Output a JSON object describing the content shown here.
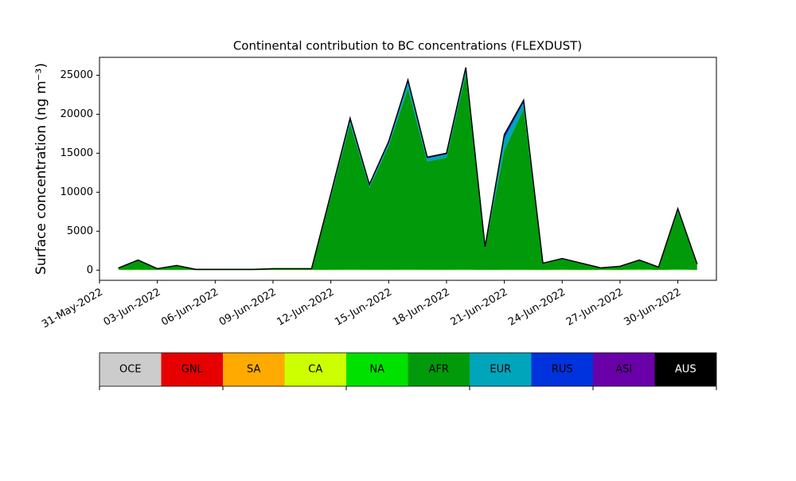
{
  "chart_data": {
    "type": "stacked_area",
    "title": "Continental contribution to BC concentrations (FLEXDUST)",
    "y_label": "Surface concentration (ng m⁻³)",
    "x": [
      "2022-06-01",
      "2022-06-02",
      "2022-06-03",
      "2022-06-04",
      "2022-06-05",
      "2022-06-06",
      "2022-06-07",
      "2022-06-08",
      "2022-06-09",
      "2022-06-10",
      "2022-06-11",
      "2022-06-12",
      "2022-06-13",
      "2022-06-14",
      "2022-06-15",
      "2022-06-16",
      "2022-06-17",
      "2022-06-18",
      "2022-06-19",
      "2022-06-20",
      "2022-06-21",
      "2022-06-22",
      "2022-06-23",
      "2022-06-24",
      "2022-06-25",
      "2022-06-26",
      "2022-06-27",
      "2022-06-28",
      "2022-06-29",
      "2022-06-30",
      "2022-07-01"
    ],
    "series": [
      {
        "name": "OCE",
        "color": "#cccccc",
        "values": [
          1,
          1,
          1,
          1,
          1,
          1,
          1,
          1,
          1,
          1,
          1,
          1,
          1,
          1,
          1,
          1,
          1,
          1,
          1,
          1,
          1,
          1,
          1,
          1,
          1,
          1,
          1,
          1,
          1,
          1,
          1
        ]
      },
      {
        "name": "GNL",
        "color": "#e60000",
        "values": [
          2,
          2,
          2,
          2,
          2,
          2,
          2,
          2,
          2,
          2,
          2,
          2,
          2,
          2,
          2,
          2,
          2,
          2,
          2,
          2,
          2,
          2,
          2,
          2,
          2,
          2,
          2,
          2,
          2,
          2,
          2
        ]
      },
      {
        "name": "SA",
        "color": "#ffaa00",
        "values": [
          5,
          5,
          5,
          5,
          5,
          5,
          5,
          5,
          5,
          5,
          5,
          5,
          5,
          5,
          5,
          5,
          5,
          5,
          5,
          5,
          5,
          5,
          5,
          5,
          5,
          5,
          5,
          5,
          5,
          5,
          5
        ]
      },
      {
        "name": "CA",
        "color": "#ccff00",
        "values": [
          20,
          30,
          10,
          20,
          10,
          10,
          10,
          10,
          20,
          20,
          20,
          20,
          20,
          20,
          20,
          20,
          20,
          20,
          20,
          20,
          20,
          20,
          20,
          30,
          20,
          20,
          20,
          30,
          20,
          30,
          20
        ]
      },
      {
        "name": "NA",
        "color": "#00e100",
        "values": [
          30,
          60,
          20,
          40,
          10,
          10,
          10,
          10,
          30,
          30,
          30,
          60,
          80,
          60,
          70,
          80,
          60,
          60,
          80,
          40,
          60,
          60,
          50,
          60,
          50,
          40,
          50,
          100,
          40,
          80,
          50
        ]
      },
      {
        "name": "AFR",
        "color": "#009a0a",
        "values": [
          219,
          1144,
          139,
          499,
          57,
          57,
          57,
          57,
          119,
          119,
          119,
          9304,
          18684,
          10504,
          15844,
          23184,
          13854,
          14354,
          25084,
          2814,
          15304,
          20604,
          774,
          1324,
          774,
          209,
          384,
          1094,
          309,
          7474,
          674
        ]
      },
      {
        "name": "EUR",
        "color": "#00a5bb",
        "values": [
          10,
          40,
          10,
          20,
          5,
          5,
          5,
          5,
          10,
          10,
          10,
          300,
          500,
          300,
          400,
          800,
          400,
          400,
          600,
          80,
          1500,
          800,
          30,
          50,
          30,
          10,
          20,
          40,
          10,
          200,
          30
        ]
      },
      {
        "name": "RUS",
        "color": "#0033dd",
        "values": [
          5,
          10,
          5,
          5,
          2,
          2,
          2,
          2,
          5,
          5,
          5,
          100,
          200,
          100,
          150,
          300,
          150,
          150,
          200,
          30,
          500,
          300,
          10,
          20,
          10,
          5,
          10,
          20,
          5,
          100,
          10
        ]
      },
      {
        "name": "ASI",
        "color": "#6a00a8",
        "values": [
          5,
          5,
          5,
          5,
          5,
          5,
          5,
          5,
          5,
          5,
          5,
          5,
          5,
          5,
          5,
          5,
          5,
          5,
          5,
          5,
          5,
          5,
          5,
          5,
          5,
          5,
          5,
          5,
          5,
          5,
          5
        ]
      },
      {
        "name": "AUS",
        "color": "#000000",
        "values": [
          3,
          3,
          3,
          3,
          3,
          3,
          3,
          3,
          3,
          3,
          3,
          3,
          3,
          3,
          3,
          3,
          3,
          3,
          3,
          3,
          3,
          3,
          3,
          3,
          3,
          3,
          3,
          3,
          3,
          3,
          3
        ]
      }
    ],
    "xlim": [
      "2022-05-31",
      "2022-07-02"
    ],
    "xticks": [
      {
        "value": "2022-05-31",
        "label": "31-May-2022"
      },
      {
        "value": "2022-06-03",
        "label": "03-Jun-2022"
      },
      {
        "value": "2022-06-06",
        "label": "06-Jun-2022"
      },
      {
        "value": "2022-06-09",
        "label": "09-Jun-2022"
      },
      {
        "value": "2022-06-12",
        "label": "12-Jun-2022"
      },
      {
        "value": "2022-06-15",
        "label": "15-Jun-2022"
      },
      {
        "value": "2022-06-18",
        "label": "18-Jun-2022"
      },
      {
        "value": "2022-06-21",
        "label": "21-Jun-2022"
      },
      {
        "value": "2022-06-24",
        "label": "24-Jun-2022"
      },
      {
        "value": "2022-06-27",
        "label": "27-Jun-2022"
      },
      {
        "value": "2022-06-30",
        "label": "30-Jun-2022"
      }
    ],
    "ylim": [
      -1300,
      27300
    ],
    "yticks": [
      0,
      5000,
      10000,
      15000,
      20000,
      25000
    ],
    "legend": "bottom"
  }
}
